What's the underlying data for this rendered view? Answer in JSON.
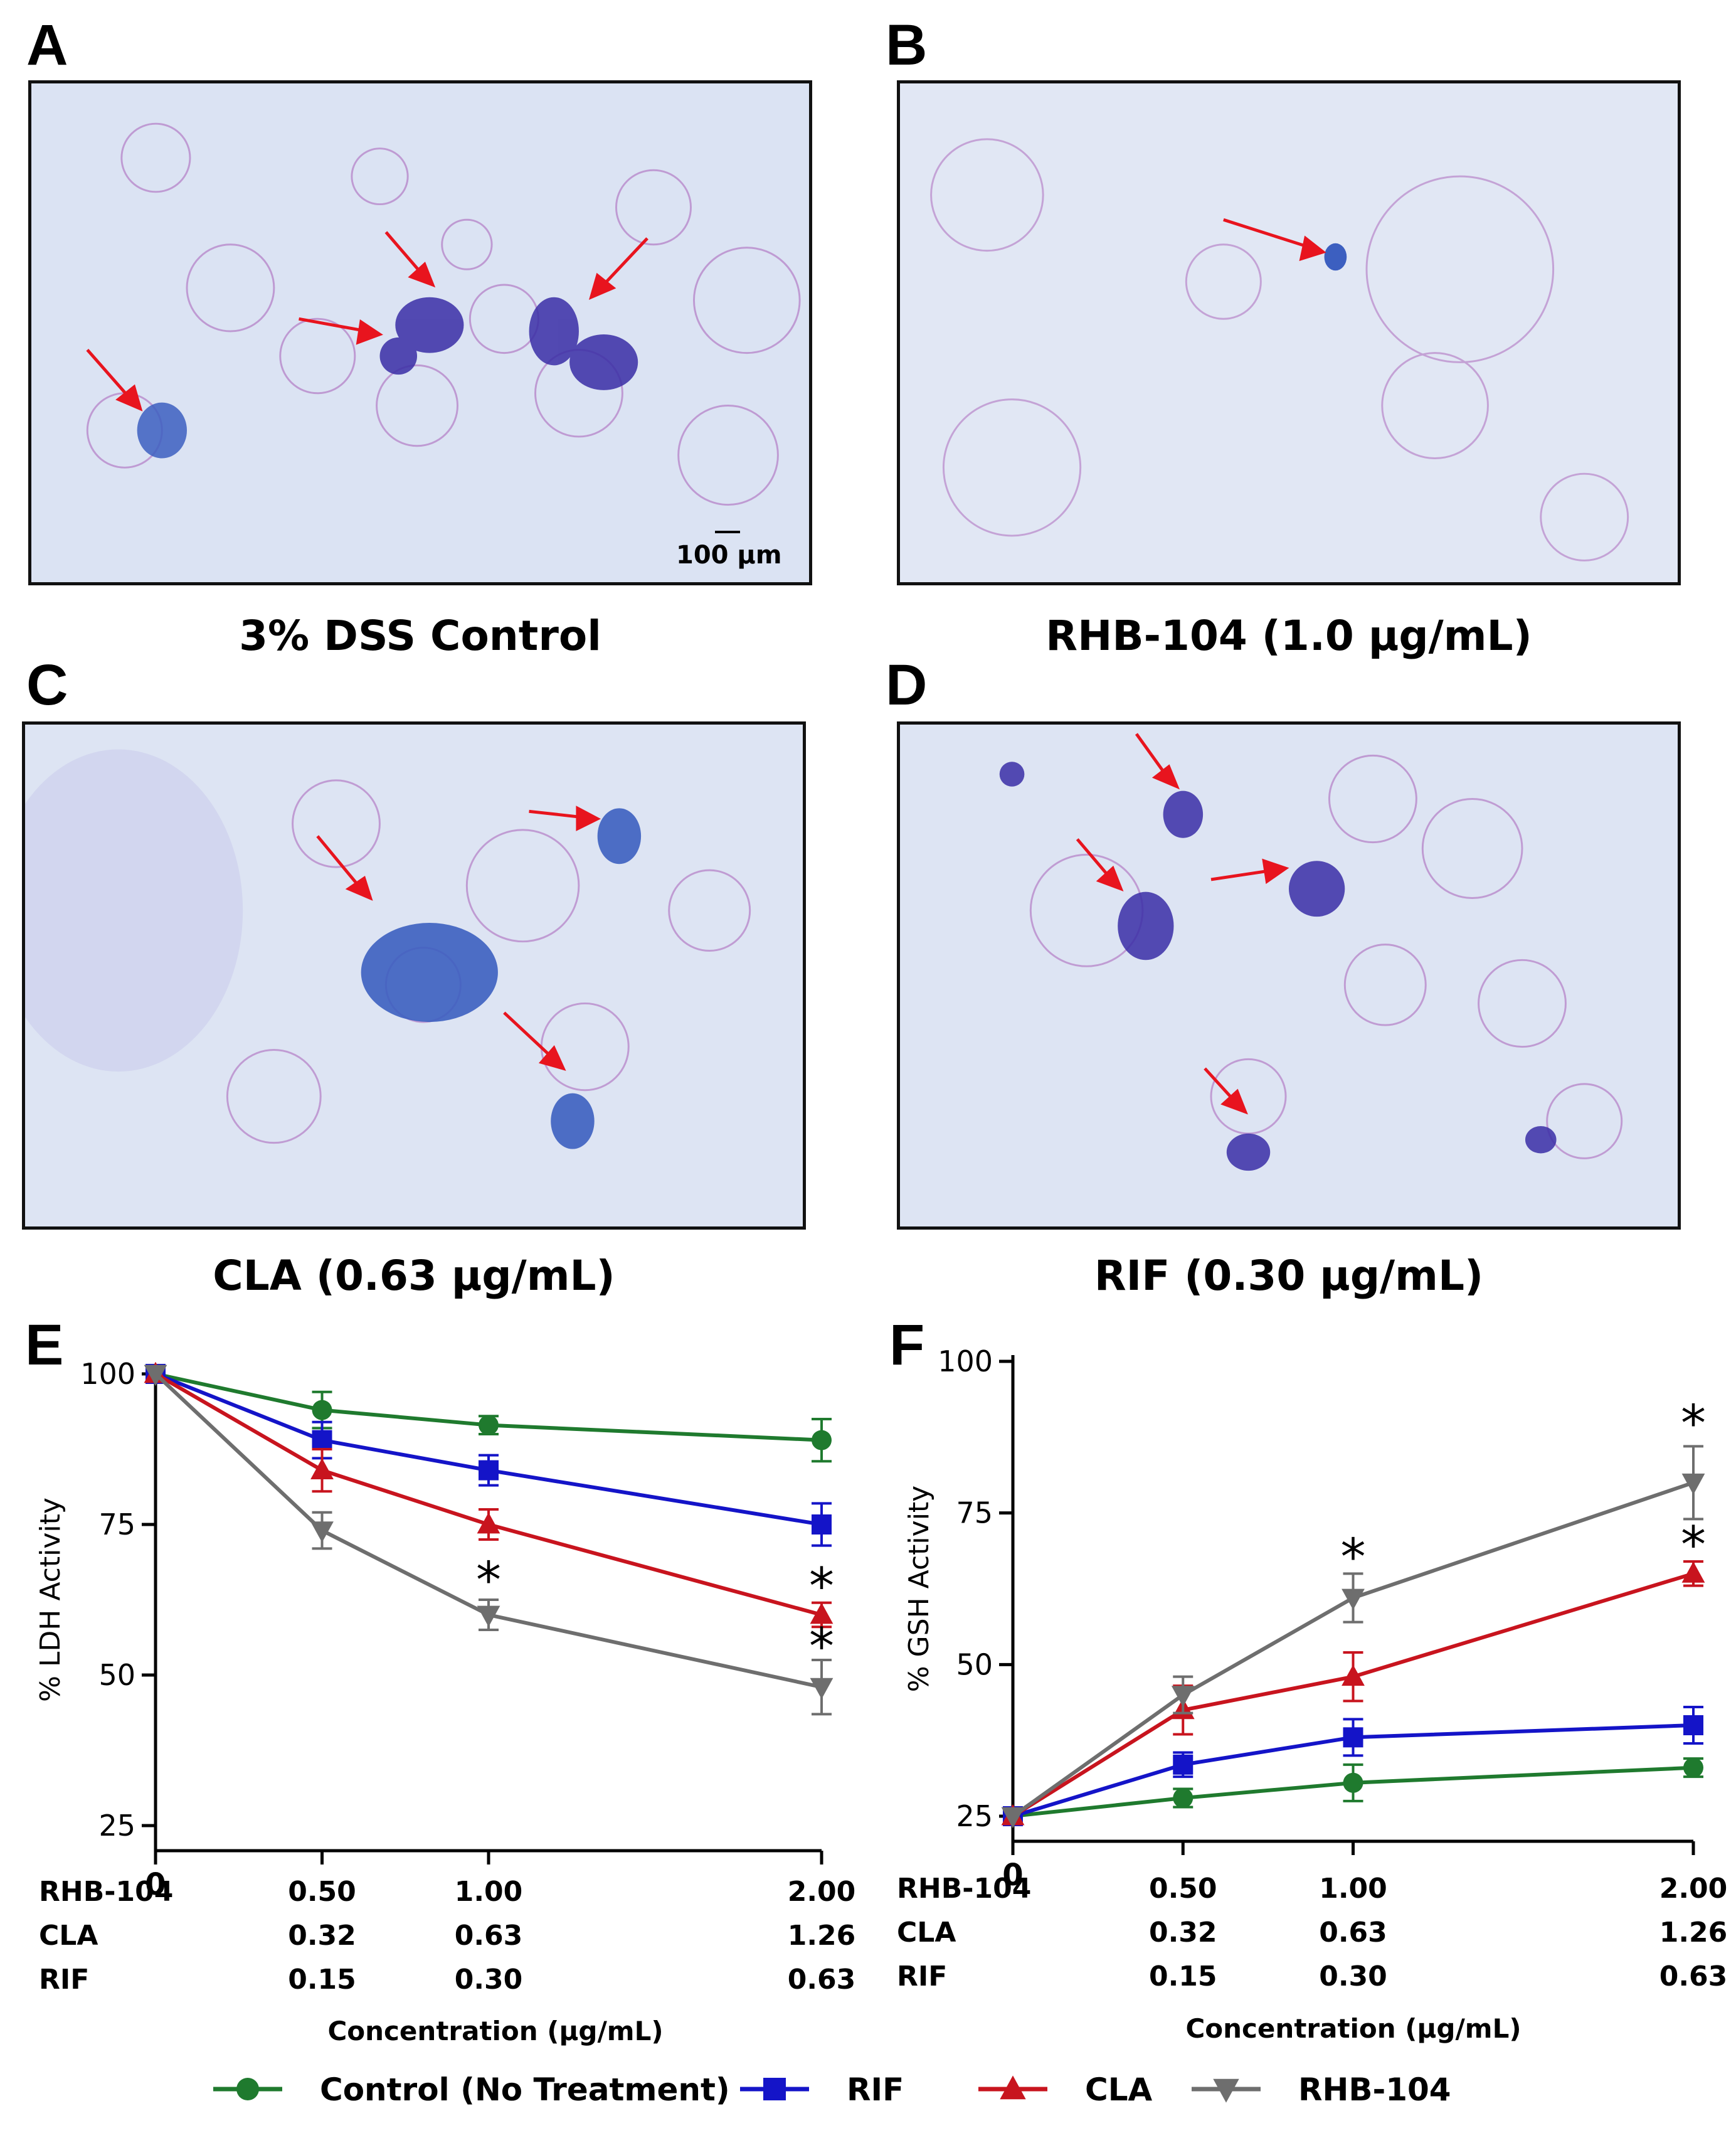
{
  "panels": {
    "A": {
      "letter": "A",
      "caption": "3% DSS Control",
      "scale_label": "100 µm"
    },
    "B": {
      "letter": "B",
      "caption": "RHB-104 (1.0 µg/mL)"
    },
    "C": {
      "letter": "C",
      "caption": "CLA (0.63 µg/mL)"
    },
    "D": {
      "letter": "D",
      "caption": "RIF (0.30 µg/mL)"
    }
  },
  "colors": {
    "control": "#1f7a2e",
    "rif": "#1414c8",
    "cla": "#c8141e",
    "rhb": "#6e6e6e",
    "arrow": "#e8141e",
    "tissue_bg": "#d9e4f2",
    "cell_pink": "#a05ab0",
    "stain": "#3c2fa8"
  },
  "chart_data": [
    {
      "type": "line",
      "panel": "E",
      "ylabel": "% LDH Activity",
      "xlabel": "Concentration (µg/mL)",
      "ylim": [
        25,
        100
      ],
      "yticks": [
        25,
        50,
        75,
        100
      ],
      "x": [
        0,
        0.5,
        1.0,
        2.0
      ],
      "x_origin_label": "0",
      "x_rows": [
        {
          "name": "RHB-104",
          "values": [
            "0.50",
            "1.00",
            "2.00"
          ]
        },
        {
          "name": "CLA",
          "values": [
            "0.32",
            "0.63",
            "1.26"
          ]
        },
        {
          "name": "RIF",
          "values": [
            "0.15",
            "0.30",
            "0.63"
          ]
        }
      ],
      "series": [
        {
          "key": "control",
          "name": "Control (No Treatment)",
          "marker": "circle",
          "values": [
            100,
            94,
            91.5,
            89
          ],
          "err": [
            0,
            3,
            1.5,
            3.5
          ]
        },
        {
          "key": "rif",
          "name": "RIF",
          "marker": "square",
          "values": [
            100,
            89,
            84,
            75
          ],
          "err": [
            0,
            3,
            2.5,
            3.5
          ]
        },
        {
          "key": "cla",
          "name": "CLA",
          "marker": "triangle-up",
          "values": [
            100,
            84,
            75,
            60
          ],
          "err": [
            0,
            3.5,
            2.5,
            2
          ]
        },
        {
          "key": "rhb",
          "name": "RHB-104",
          "marker": "triangle-down",
          "values": [
            100,
            74,
            60,
            48
          ],
          "err": [
            0,
            3,
            2.5,
            4.5
          ]
        }
      ],
      "annotations": [
        {
          "text": "*",
          "x": 1.0,
          "y": 66
        },
        {
          "text": "*",
          "x": 2.0,
          "y": 65
        },
        {
          "text": "*",
          "x": 2.0,
          "y": 55
        }
      ]
    },
    {
      "type": "line",
      "panel": "F",
      "ylabel": "% GSH Activity",
      "xlabel": "Concentration (µg/mL)",
      "ylim": [
        25,
        100
      ],
      "yticks": [
        25,
        50,
        75,
        100
      ],
      "x": [
        0,
        0.5,
        1.0,
        2.0
      ],
      "x_origin_label": "0",
      "x_rows": [
        {
          "name": "RHB-104",
          "values": [
            "0.50",
            "1.00",
            "2.00"
          ]
        },
        {
          "name": "CLA",
          "values": [
            "0.32",
            "0.63",
            "1.26"
          ]
        },
        {
          "name": "RIF",
          "values": [
            "0.15",
            "0.30",
            "0.63"
          ]
        }
      ],
      "series": [
        {
          "key": "control",
          "name": "Control (No Treatment)",
          "marker": "circle",
          "values": [
            25,
            28,
            30.5,
            33
          ],
          "err": [
            0,
            1.5,
            3,
            1.5
          ]
        },
        {
          "key": "rif",
          "name": "RIF",
          "marker": "square",
          "values": [
            25,
            33.5,
            38,
            40
          ],
          "err": [
            0,
            2,
            3,
            3
          ]
        },
        {
          "key": "cla",
          "name": "CLA",
          "marker": "triangle-up",
          "values": [
            25,
            42.5,
            48,
            65
          ],
          "err": [
            0,
            4,
            4,
            2
          ]
        },
        {
          "key": "rhb",
          "name": "RHB-104",
          "marker": "triangle-down",
          "values": [
            25,
            45,
            61,
            80
          ],
          "err": [
            0,
            3,
            4,
            6
          ]
        }
      ],
      "annotations": [
        {
          "text": "*",
          "x": 1.0,
          "y": 68
        },
        {
          "text": "*",
          "x": 2.0,
          "y": 90
        },
        {
          "text": "*",
          "x": 2.0,
          "y": 70
        }
      ]
    }
  ],
  "legend": [
    {
      "key": "control",
      "label": "Control (No Treatment)",
      "marker": "circle"
    },
    {
      "key": "rif",
      "label": "RIF",
      "marker": "square"
    },
    {
      "key": "cla",
      "label": "CLA",
      "marker": "triangle-up"
    },
    {
      "key": "rhb",
      "label": "RHB-104",
      "marker": "triangle-down"
    }
  ]
}
